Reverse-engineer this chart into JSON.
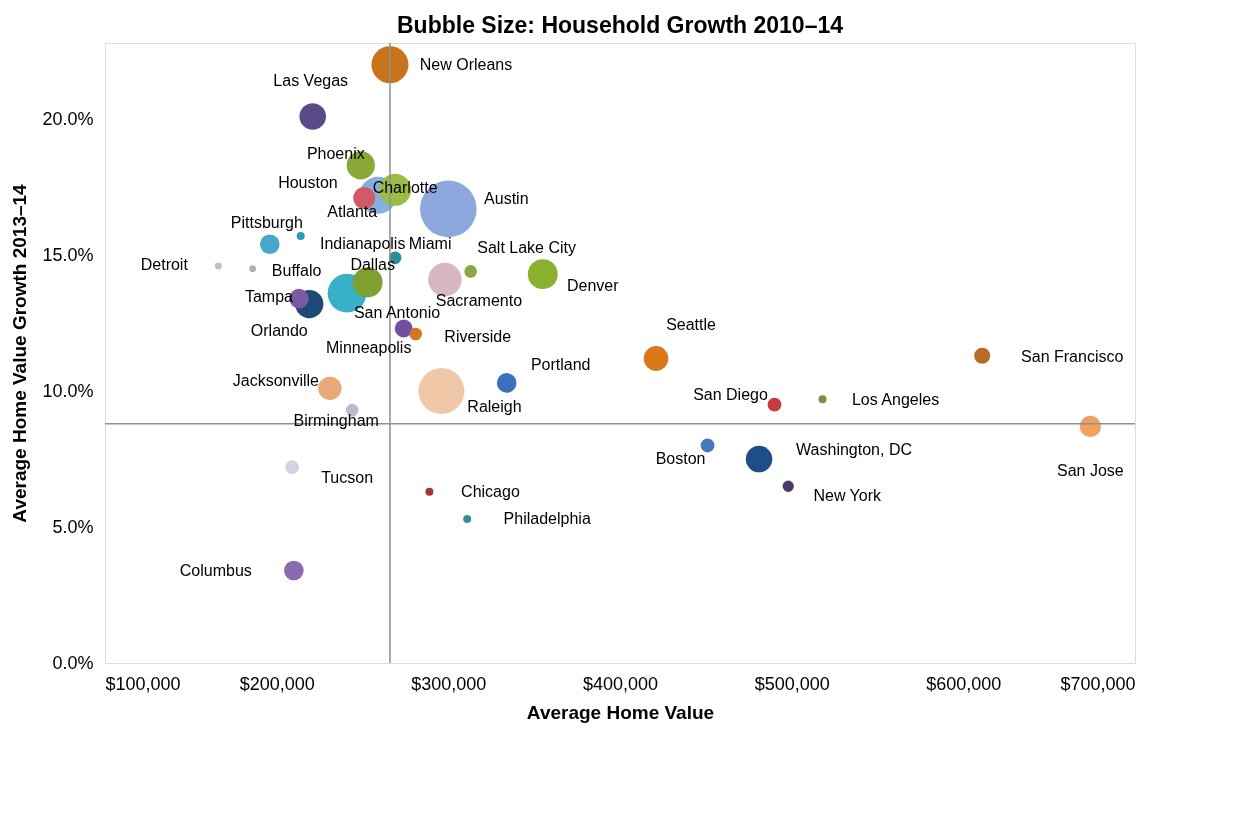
{
  "chart_data": {
    "type": "bubble",
    "title": "Bubble Size: Household Growth 2010–14",
    "xlabel": "Average Home Value",
    "ylabel": "Average Home Value Growth 2013–14",
    "xlim": [
      100000,
      700000
    ],
    "ylim": [
      0,
      22.8
    ],
    "xticks": [
      {
        "value": 100000,
        "label": "$100,000"
      },
      {
        "value": 200000,
        "label": "$200,000"
      },
      {
        "value": 300000,
        "label": "$300,000"
      },
      {
        "value": 400000,
        "label": "$400,000"
      },
      {
        "value": 500000,
        "label": "$500,000"
      },
      {
        "value": 600000,
        "label": "$600,000"
      },
      {
        "value": 700000,
        "label": "$700,000"
      }
    ],
    "yticks": [
      {
        "value": 0,
        "label": "0.0%"
      },
      {
        "value": 5,
        "label": "5.0%"
      },
      {
        "value": 10,
        "label": "10.0%"
      },
      {
        "value": 15,
        "label": "15.0%"
      },
      {
        "value": 20,
        "label": "20.0%"
      }
    ],
    "grid": false,
    "x": [
      266000,
      221000,
      249000,
      259000,
      251000,
      269000,
      300000,
      196000,
      214000,
      269000,
      166000,
      186000,
      253000,
      241000,
      219000,
      213000,
      298000,
      313000,
      355000,
      274000,
      281000,
      421000,
      611000,
      231000,
      296000,
      334000,
      490000,
      518000,
      244000,
      674000,
      451000,
      481000,
      498000,
      209000,
      289000,
      311000,
      210000
    ],
    "values": [
      22.0,
      20.1,
      18.3,
      17.2,
      17.1,
      17.4,
      16.7,
      15.4,
      15.7,
      14.9,
      14.6,
      14.5,
      14.0,
      13.6,
      13.2,
      13.4,
      14.1,
      14.4,
      14.3,
      12.3,
      12.1,
      11.2,
      11.3,
      10.1,
      10.0,
      10.3,
      9.5,
      9.7,
      9.3,
      8.7,
      8.0,
      7.5,
      6.5,
      7.2,
      6.3,
      5.3,
      3.4
    ],
    "sizes": [
      0.43,
      0.22,
      0.25,
      0.43,
      0.15,
      0.32,
      1,
      0.12,
      0.02,
      0.05,
      0.015,
      0.015,
      0.28,
      0.47,
      0.25,
      0.12,
      0.35,
      0.05,
      0.28,
      0.1,
      0.05,
      0.19,
      0.08,
      0.17,
      0.66,
      0.12,
      0.06,
      0.02,
      0.05,
      0.14,
      0.06,
      0.22,
      0.04,
      0.06,
      0.02,
      0.02,
      0.12
    ],
    "colors": [
      "#c8741c",
      "#5a4a8a",
      "#8aa838",
      "#8aaee0",
      "#d05a68",
      "#9cbc48",
      "#8ca8dc",
      "#48a8cc",
      "#2a9ab8",
      "#2a8c9c",
      "#c0c0c0",
      "#b0b0b0",
      "#7ea030",
      "#38b0c8",
      "#1e4a7a",
      "#7a5aa0",
      "#d8b8c0",
      "#8aa848",
      "#8ab030",
      "#7050a0",
      "#d07820",
      "#d87a1c",
      "#b86a28",
      "#e8a878",
      "#f0c8a8",
      "#3a70c0",
      "#c83a40",
      "#7a9048",
      "#b8bcd0",
      "#f0a060",
      "#4a78c0",
      "#1e4e88",
      "#4a3a68",
      "#d0d4e0",
      "#a03838",
      "#3a8a98",
      "#8a6ab0"
    ],
    "annotations": [
      {
        "text": "New Orleans",
        "x": 266000,
        "y": 22.0
      },
      {
        "text": "Las Vegas",
        "x": 221000,
        "y": 20.1
      },
      {
        "text": "Phoenix",
        "x": 249000,
        "y": 18.3
      },
      {
        "text": "Houston",
        "x": 259000,
        "y": 17.2
      },
      {
        "text": "Atlanta",
        "x": 251000,
        "y": 17.1
      },
      {
        "text": "Charlotte",
        "x": 269000,
        "y": 17.4
      },
      {
        "text": "Austin",
        "x": 300000,
        "y": 16.7
      },
      {
        "text": "Pittsburgh",
        "x": 196000,
        "y": 15.4
      },
      {
        "text": "Indianapolis",
        "x": 214000,
        "y": 15.7
      },
      {
        "text": "Miami",
        "x": 269000,
        "y": 14.9
      },
      {
        "text": "Detroit",
        "x": 166000,
        "y": 14.6
      },
      {
        "text": "Buffalo",
        "x": 186000,
        "y": 14.5
      },
      {
        "text": "Dallas",
        "x": 253000,
        "y": 14.0
      },
      {
        "text": "San Antonio",
        "x": 241000,
        "y": 13.6
      },
      {
        "text": "Orlando",
        "x": 219000,
        "y": 13.2
      },
      {
        "text": "Tampa",
        "x": 213000,
        "y": 13.4
      },
      {
        "text": "Sacramento",
        "x": 298000,
        "y": 14.1
      },
      {
        "text": "Salt Lake City",
        "x": 313000,
        "y": 14.4
      },
      {
        "text": "Denver",
        "x": 355000,
        "y": 14.3
      },
      {
        "text": "Minneapolis",
        "x": 274000,
        "y": 12.3
      },
      {
        "text": "Riverside",
        "x": 281000,
        "y": 12.1
      },
      {
        "text": "Seattle",
        "x": 421000,
        "y": 11.2
      },
      {
        "text": "San Francisco",
        "x": 611000,
        "y": 11.3
      },
      {
        "text": "Jacksonville",
        "x": 231000,
        "y": 10.1
      },
      {
        "text": "Raleigh",
        "x": 296000,
        "y": 10.0
      },
      {
        "text": "Portland",
        "x": 334000,
        "y": 10.3
      },
      {
        "text": "San Diego",
        "x": 490000,
        "y": 9.5
      },
      {
        "text": "Los Angeles",
        "x": 518000,
        "y": 9.7
      },
      {
        "text": "Birmingham",
        "x": 244000,
        "y": 9.3
      },
      {
        "text": "San Jose",
        "x": 674000,
        "y": 8.7
      },
      {
        "text": "Boston",
        "x": 451000,
        "y": 8.0
      },
      {
        "text": "Washington, DC",
        "x": 481000,
        "y": 7.5
      },
      {
        "text": "New York",
        "x": 498000,
        "y": 6.5
      },
      {
        "text": "Tucson",
        "x": 209000,
        "y": 7.2
      },
      {
        "text": "Chicago",
        "x": 289000,
        "y": 6.3
      },
      {
        "text": "Philadelphia",
        "x": 311000,
        "y": 5.3
      },
      {
        "text": "Columbus",
        "x": 210000,
        "y": 3.4
      }
    ],
    "ref_lines": [
      {
        "axis": "x",
        "value": 266000,
        "color": "#909090"
      },
      {
        "axis": "y",
        "value": 8.8,
        "color": "#909090"
      }
    ]
  }
}
